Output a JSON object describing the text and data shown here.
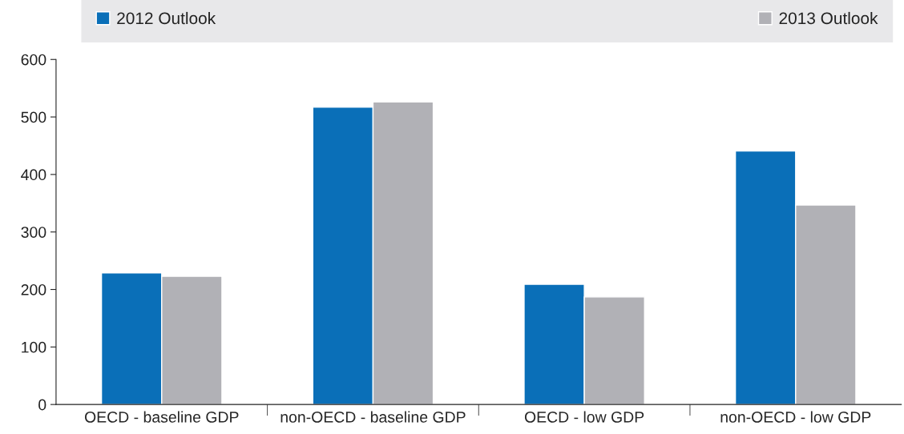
{
  "chart_data": {
    "type": "bar",
    "categories": [
      "OECD - baseline GDP",
      "non-OECD - baseline GDP",
      "OECD - low GDP",
      "non-OECD - low GDP"
    ],
    "series": [
      {
        "name": "2012 Outlook",
        "color": "#0a6fb8",
        "values": [
          229,
          517,
          209,
          441
        ]
      },
      {
        "name": "2013 Outlook",
        "color": "#b1b1b6",
        "values": [
          223,
          526,
          187,
          347
        ]
      }
    ],
    "ylim": [
      0,
      600
    ],
    "yticks": [
      0,
      100,
      200,
      300,
      400,
      500,
      600
    ],
    "grid": false,
    "legend": "top"
  }
}
